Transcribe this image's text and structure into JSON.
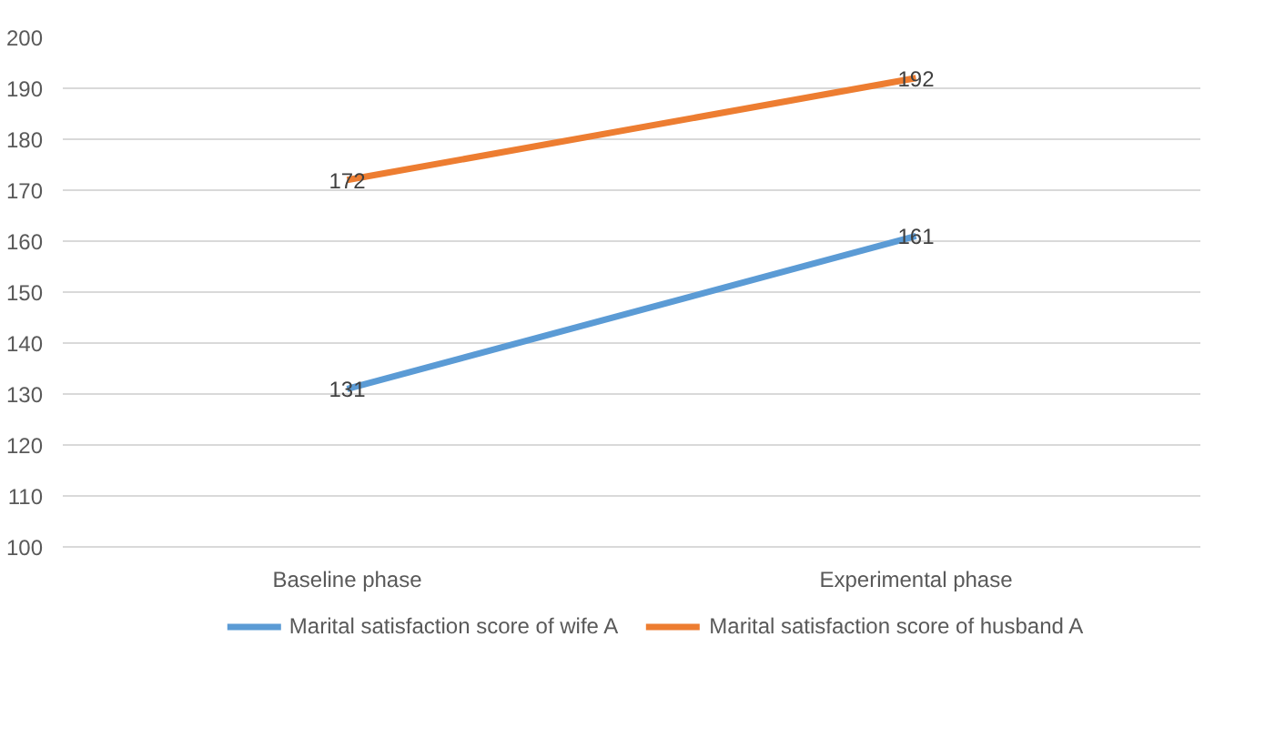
{
  "chart_data": {
    "type": "line",
    "categories": [
      "Baseline phase",
      "Experimental phase"
    ],
    "series": [
      {
        "name": "Marital satisfaction score of wife A",
        "color": "#5b9bd5",
        "values": [
          131,
          161
        ]
      },
      {
        "name": "Marital satisfaction score of husband A",
        "color": "#ed7d31",
        "values": [
          172,
          192
        ]
      }
    ],
    "ylim": [
      100,
      200
    ],
    "yticks": [
      100,
      110,
      120,
      130,
      140,
      150,
      160,
      170,
      180,
      190,
      200
    ],
    "grid": "y",
    "legend": "bottom",
    "data_labels": true,
    "marker": "none",
    "line_style": "solid"
  }
}
